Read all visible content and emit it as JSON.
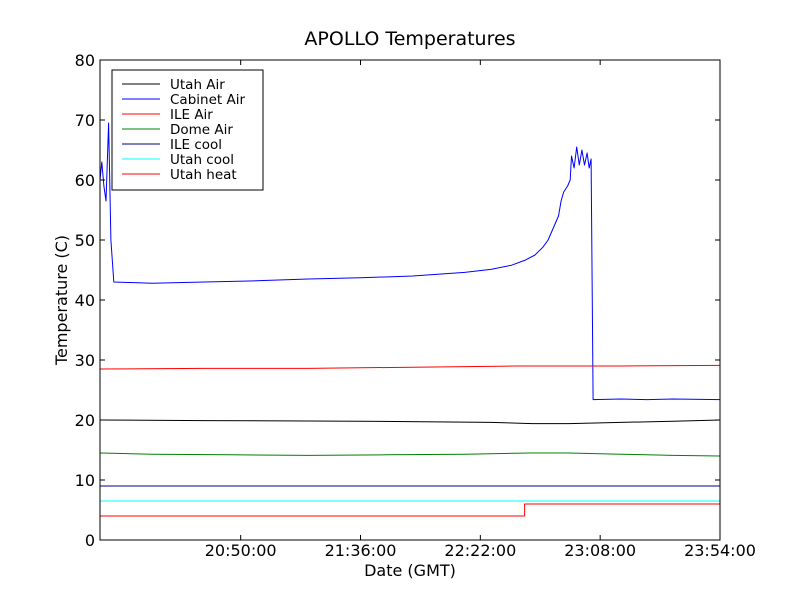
{
  "chart_data": {
    "type": "line",
    "title": "APOLLO Temperatures",
    "xlabel": "Date (GMT)",
    "ylabel": "Temperature (C)",
    "x_unit": "minutes since 19:56:00 GMT",
    "xlim": [
      0,
      238
    ],
    "ylim": [
      0,
      80
    ],
    "yticks": [
      0,
      10,
      20,
      30,
      40,
      50,
      60,
      70,
      80
    ],
    "xticks": [
      {
        "value": 54,
        "label": "20:50:00"
      },
      {
        "value": 100,
        "label": "21:36:00"
      },
      {
        "value": 146,
        "label": "22:22:00"
      },
      {
        "value": 192,
        "label": "23:08:00"
      },
      {
        "value": 238,
        "label": "23:54:00"
      }
    ],
    "grid": false,
    "legend_position": "upper-left",
    "series": [
      {
        "name": "Utah Air",
        "color": "#000000",
        "points": [
          [
            0,
            20.0
          ],
          [
            40,
            19.9
          ],
          [
            100,
            19.8
          ],
          [
            150,
            19.6
          ],
          [
            166,
            19.4
          ],
          [
            180,
            19.4
          ],
          [
            200,
            19.6
          ],
          [
            220,
            19.8
          ],
          [
            238,
            20.0
          ]
        ]
      },
      {
        "name": "Cabinet Air",
        "color": "#0000ff",
        "points": [
          [
            0,
            60
          ],
          [
            0.7,
            63
          ],
          [
            1.5,
            59
          ],
          [
            2.3,
            56.5
          ],
          [
            3.3,
            69.5
          ],
          [
            4.2,
            50
          ],
          [
            5.3,
            43
          ],
          [
            20,
            42.8
          ],
          [
            40,
            43.0
          ],
          [
            60,
            43.2
          ],
          [
            80,
            43.5
          ],
          [
            100,
            43.7
          ],
          [
            120,
            44.0
          ],
          [
            140,
            44.6
          ],
          [
            150,
            45.1
          ],
          [
            158,
            45.8
          ],
          [
            163,
            46.6
          ],
          [
            167,
            47.5
          ],
          [
            170,
            48.8
          ],
          [
            172,
            50
          ],
          [
            174,
            52
          ],
          [
            176,
            54
          ],
          [
            177,
            56.5
          ],
          [
            178,
            58
          ],
          [
            179.5,
            59
          ],
          [
            180.5,
            60
          ],
          [
            181,
            64
          ],
          [
            182,
            62
          ],
          [
            183,
            65.5
          ],
          [
            184,
            62.5
          ],
          [
            185,
            65
          ],
          [
            186,
            62.5
          ],
          [
            187,
            64.5
          ],
          [
            187.8,
            62
          ],
          [
            188.5,
            63.5
          ],
          [
            189.3,
            23.4
          ],
          [
            200,
            23.5
          ],
          [
            210,
            23.4
          ],
          [
            220,
            23.5
          ],
          [
            238,
            23.4
          ]
        ]
      },
      {
        "name": "ILE Air",
        "color": "#ff0000",
        "points": [
          [
            0,
            28.5
          ],
          [
            40,
            28.6
          ],
          [
            80,
            28.6
          ],
          [
            120,
            28.8
          ],
          [
            160,
            29.0
          ],
          [
            200,
            29.0
          ],
          [
            238,
            29.1
          ]
        ]
      },
      {
        "name": "Dome Air",
        "color": "#008000",
        "points": [
          [
            0,
            14.5
          ],
          [
            20,
            14.3
          ],
          [
            50,
            14.2
          ],
          [
            80,
            14.1
          ],
          [
            110,
            14.2
          ],
          [
            140,
            14.3
          ],
          [
            165,
            14.5
          ],
          [
            180,
            14.5
          ],
          [
            200,
            14.3
          ],
          [
            220,
            14.1
          ],
          [
            238,
            14.0
          ]
        ]
      },
      {
        "name": "ILE cool",
        "color": "#000080",
        "points": [
          [
            0,
            9.0
          ],
          [
            238,
            9.0
          ]
        ]
      },
      {
        "name": "Utah cool",
        "color": "#00ffff",
        "points": [
          [
            0,
            6.5
          ],
          [
            238,
            6.5
          ]
        ]
      },
      {
        "name": "Utah heat",
        "color": "#ff0000",
        "points": [
          [
            0,
            4.0
          ],
          [
            163,
            4.0
          ],
          [
            163,
            6.0
          ],
          [
            238,
            6.0
          ]
        ]
      }
    ]
  }
}
